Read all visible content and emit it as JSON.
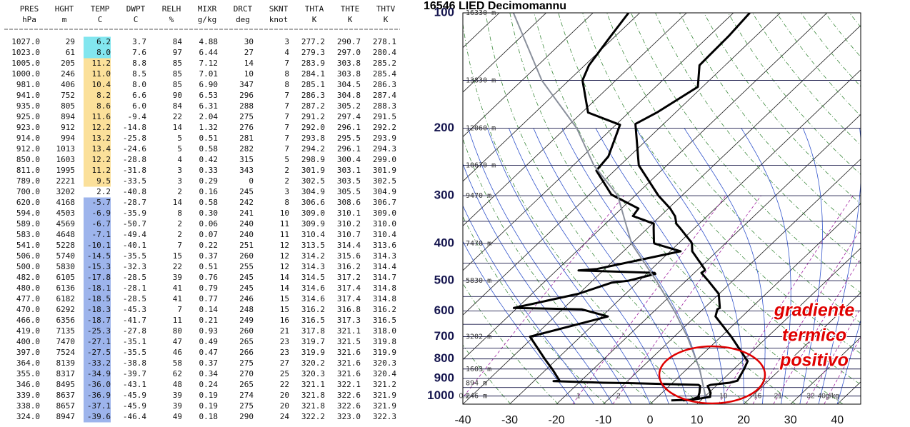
{
  "table": {
    "header": [
      "PRES",
      "HGHT",
      "TEMP",
      "DWPT",
      "RELH",
      "MIXR",
      "DRCT",
      "SKNT",
      "THTA",
      "THTE",
      "THTV"
    ],
    "units": [
      "hPa",
      "m",
      "C",
      "C",
      "%",
      "g/kg",
      "deg",
      "knot",
      "K",
      "K",
      "K"
    ],
    "rows": [
      [
        "1027.0",
        "29",
        "6.2",
        "3.7",
        "84",
        "4.88",
        "30",
        "3",
        "277.2",
        "290.7",
        "278.1"
      ],
      [
        "1023.0",
        "61",
        "8.0",
        "7.6",
        "97",
        "6.44",
        "27",
        "4",
        "279.3",
        "297.0",
        "280.4"
      ],
      [
        "1005.0",
        "205",
        "11.2",
        "8.8",
        "85",
        "7.12",
        "14",
        "7",
        "283.9",
        "303.8",
        "285.2"
      ],
      [
        "1000.0",
        "246",
        "11.0",
        "8.5",
        "85",
        "7.01",
        "10",
        "8",
        "284.1",
        "303.8",
        "285.4"
      ],
      [
        "981.0",
        "406",
        "10.4",
        "8.0",
        "85",
        "6.90",
        "347",
        "8",
        "285.1",
        "304.5",
        "286.3"
      ],
      [
        "941.0",
        "752",
        "8.2",
        "6.6",
        "90",
        "6.53",
        "296",
        "7",
        "286.3",
        "304.8",
        "287.4"
      ],
      [
        "935.0",
        "805",
        "8.6",
        "6.0",
        "84",
        "6.31",
        "288",
        "7",
        "287.2",
        "305.2",
        "288.3"
      ],
      [
        "925.0",
        "894",
        "11.6",
        "-9.4",
        "22",
        "2.04",
        "275",
        "7",
        "291.2",
        "297.4",
        "291.5"
      ],
      [
        "923.0",
        "912",
        "12.2",
        "-14.8",
        "14",
        "1.32",
        "276",
        "7",
        "292.0",
        "296.1",
        "292.2"
      ],
      [
        "914.0",
        "994",
        "13.2",
        "-25.8",
        "5",
        "0.51",
        "281",
        "7",
        "293.8",
        "295.5",
        "293.9"
      ],
      [
        "912.0",
        "1013",
        "13.4",
        "-24.6",
        "5",
        "0.58",
        "282",
        "7",
        "294.2",
        "296.1",
        "294.3"
      ],
      [
        "850.0",
        "1603",
        "12.2",
        "-28.8",
        "4",
        "0.42",
        "315",
        "5",
        "298.9",
        "300.4",
        "299.0"
      ],
      [
        "811.0",
        "1995",
        "11.2",
        "-31.8",
        "3",
        "0.33",
        "343",
        "2",
        "301.9",
        "303.1",
        "301.9"
      ],
      [
        "789.0",
        "2221",
        "9.5",
        "-33.5",
        "3",
        "0.29",
        "0",
        "2",
        "302.5",
        "303.5",
        "302.5"
      ],
      [
        "700.0",
        "3202",
        "2.2",
        "-40.8",
        "2",
        "0.16",
        "245",
        "3",
        "304.9",
        "305.5",
        "304.9"
      ],
      [
        "620.0",
        "4168",
        "-5.7",
        "-28.7",
        "14",
        "0.58",
        "242",
        "8",
        "306.6",
        "308.6",
        "306.7"
      ],
      [
        "594.0",
        "4503",
        "-6.9",
        "-35.9",
        "8",
        "0.30",
        "241",
        "10",
        "309.0",
        "310.1",
        "309.0"
      ],
      [
        "589.0",
        "4569",
        "-6.7",
        "-50.7",
        "2",
        "0.06",
        "240",
        "11",
        "309.9",
        "310.2",
        "310.0"
      ],
      [
        "583.0",
        "4648",
        "-7.1",
        "-49.4",
        "2",
        "0.07",
        "240",
        "11",
        "310.4",
        "310.7",
        "310.4"
      ],
      [
        "541.0",
        "5228",
        "-10.1",
        "-40.1",
        "7",
        "0.22",
        "251",
        "12",
        "313.5",
        "314.4",
        "313.6"
      ],
      [
        "506.0",
        "5740",
        "-14.5",
        "-35.5",
        "15",
        "0.37",
        "260",
        "12",
        "314.2",
        "315.6",
        "314.3"
      ],
      [
        "500.0",
        "5830",
        "-15.3",
        "-32.3",
        "22",
        "0.51",
        "255",
        "12",
        "314.3",
        "316.2",
        "314.4"
      ],
      [
        "482.0",
        "6105",
        "-17.8",
        "-28.5",
        "39",
        "0.76",
        "245",
        "14",
        "314.5",
        "317.2",
        "314.7"
      ],
      [
        "480.0",
        "6136",
        "-18.1",
        "-28.1",
        "41",
        "0.79",
        "245",
        "14",
        "314.6",
        "317.4",
        "314.8"
      ],
      [
        "477.0",
        "6182",
        "-18.5",
        "-28.5",
        "41",
        "0.77",
        "246",
        "15",
        "314.6",
        "317.4",
        "314.8"
      ],
      [
        "470.0",
        "6292",
        "-18.3",
        "-45.3",
        "7",
        "0.14",
        "248",
        "15",
        "316.2",
        "316.8",
        "316.2"
      ],
      [
        "466.0",
        "6356",
        "-18.7",
        "-41.7",
        "11",
        "0.21",
        "249",
        "16",
        "316.5",
        "317.3",
        "316.5"
      ],
      [
        "419.0",
        "7135",
        "-25.3",
        "-27.8",
        "80",
        "0.93",
        "260",
        "21",
        "317.8",
        "321.1",
        "318.0"
      ],
      [
        "400.0",
        "7470",
        "-27.1",
        "-35.1",
        "47",
        "0.49",
        "265",
        "23",
        "319.7",
        "321.5",
        "319.8"
      ],
      [
        "397.0",
        "7524",
        "-27.5",
        "-35.5",
        "46",
        "0.47",
        "266",
        "23",
        "319.9",
        "321.6",
        "319.9"
      ],
      [
        "364.0",
        "8139",
        "-33.2",
        "-38.8",
        "58",
        "0.37",
        "275",
        "27",
        "320.2",
        "321.6",
        "320.3"
      ],
      [
        "355.0",
        "8317",
        "-34.9",
        "-39.7",
        "62",
        "0.34",
        "270",
        "25",
        "320.3",
        "321.6",
        "320.4"
      ],
      [
        "346.0",
        "8495",
        "-36.0",
        "-43.1",
        "48",
        "0.24",
        "265",
        "22",
        "321.1",
        "322.1",
        "321.2"
      ],
      [
        "339.0",
        "8637",
        "-36.9",
        "-45.9",
        "39",
        "0.19",
        "274",
        "20",
        "321.8",
        "322.6",
        "321.9"
      ],
      [
        "338.0",
        "8657",
        "-37.1",
        "-45.9",
        "39",
        "0.19",
        "275",
        "20",
        "321.8",
        "322.6",
        "321.9"
      ],
      [
        "324.0",
        "8947",
        "-39.6",
        "-46.4",
        "49",
        "0.18",
        "290",
        "24",
        "322.2",
        "323.0",
        "322.3"
      ]
    ],
    "temp_colors": [
      "#82e6ef",
      "#82e6ef",
      "#fbe09a",
      "#fbe09a",
      "#fbe09a",
      "#fbe09a",
      "#fbe09a",
      "#fbe09a",
      "#fbe09a",
      "#fbe09a",
      "#fbe09a",
      "#fbe09a",
      "#fbe09a",
      "#fbe09a",
      null,
      "#9db4ec",
      "#9db4ec",
      "#9db4ec",
      "#9db4ec",
      "#9db4ec",
      "#9db4ec",
      "#9db4ec",
      "#9db4ec",
      "#9db4ec",
      "#9db4ec",
      "#9db4ec",
      "#9db4ec",
      "#9db4ec",
      "#9db4ec",
      "#9db4ec",
      "#9db4ec",
      "#9db4ec",
      "#9db4ec",
      "#9db4ec",
      "#9db4ec",
      "#9db4ec"
    ]
  },
  "chart_data": {
    "type": "skew-t",
    "title": "16546 LIED Decimomannu",
    "xlim": [
      -40,
      45
    ],
    "ylim": [
      1050,
      100
    ],
    "log_y": true,
    "xticks": [
      -40,
      -30,
      -20,
      -10,
      0,
      10,
      20,
      30,
      40
    ],
    "yticks": [
      100,
      200,
      300,
      400,
      500,
      600,
      700,
      800,
      900,
      1000
    ],
    "height_labels": [
      {
        "value": 100,
        "label": "16330 m"
      },
      {
        "value": 150,
        "label": "13830 m"
      },
      {
        "value": 200,
        "label": "12060 m"
      },
      {
        "value": 250,
        "label": "10670 m"
      },
      {
        "value": 300,
        "label": "9470 m"
      },
      {
        "value": 400,
        "label": "7470 m"
      },
      {
        "value": 500,
        "label": "5830 m"
      },
      {
        "value": 700,
        "label": "3202 m"
      },
      {
        "value": 850,
        "label": "1603 m"
      },
      {
        "value": 925,
        "label": "894 m"
      },
      {
        "value": 1000,
        "label": "246 m"
      }
    ],
    "mixing_ratio_lines": [
      0.1,
      1,
      2,
      10,
      16,
      21,
      32,
      {
        "value": 40,
        "label": "40g/kg"
      }
    ],
    "series": [
      {
        "color": "#000000",
        "width": 3,
        "pressure": [
          1027,
          1023,
          1005,
          1000,
          981,
          941,
          935,
          925,
          923,
          914,
          912,
          850,
          811,
          789,
          700,
          620,
          594,
          589,
          583,
          541,
          506,
          500,
          482,
          480,
          477,
          470,
          466,
          419,
          400,
          397,
          364,
          355,
          346,
          339,
          338,
          324,
          300,
          250,
          195,
          182,
          156,
          137,
          129,
          115,
          100
        ],
        "values": [
          6.2,
          8.0,
          11.2,
          11.0,
          10.4,
          8.2,
          8.6,
          11.6,
          12.2,
          13.2,
          13.4,
          12.2,
          11.2,
          9.5,
          2.2,
          -5.7,
          -6.9,
          -6.7,
          -7.1,
          -10.1,
          -14.5,
          -15.3,
          -17.8,
          -18.1,
          -18.5,
          -18.3,
          -18.7,
          -25.3,
          -27.1,
          -27.5,
          -33.2,
          -34.9,
          -36.0,
          -36.9,
          -37.1,
          -39.6,
          -45,
          -56,
          -66,
          -64,
          -61,
          -65.5,
          -65.6,
          -65.8,
          -66.5
        ]
      },
      {
        "color": "#000000",
        "width": 3,
        "pressure": [
          1027,
          1023,
          1005,
          1000,
          981,
          941,
          935,
          925,
          923,
          914,
          912,
          850,
          811,
          789,
          700,
          620,
          594,
          589,
          583,
          541,
          506,
          500,
          482,
          480,
          477,
          470,
          466,
          419,
          400,
          397,
          364,
          355,
          346,
          339,
          338,
          324,
          298,
          258,
          237,
          196,
          182,
          150,
          137,
          115,
          100
        ],
        "values": [
          3.7,
          7.6,
          8.8,
          8.5,
          8.0,
          6.6,
          6.0,
          -9.4,
          -14.8,
          -25.8,
          -24.6,
          -28.8,
          -31.8,
          -33.5,
          -40.8,
          -28.7,
          -35.9,
          -50.7,
          -49.4,
          -40.1,
          -35.5,
          -32.3,
          -28.5,
          -28.1,
          -28.5,
          -45.3,
          -41.7,
          -27.8,
          -35.1,
          -35.5,
          -38.8,
          -39.7,
          -43.1,
          -45.9,
          -45.9,
          -46.4,
          -55.3,
          -63.9,
          -64.5,
          -69.1,
          -78.7,
          -87.1,
          -89.1,
          -91,
          -92.4
        ]
      },
      {
        "color": "#8a909c",
        "width": 2,
        "pressure": [
          1000,
          925,
          850,
          700,
          600,
          500,
          400,
          300,
          250,
          200,
          150,
          100
        ],
        "values": [
          10,
          6.5,
          2.7,
          -7.2,
          -15.7,
          -26.4,
          -40,
          -53.7,
          -65.6,
          -77.6,
          -95.8,
          -117
        ]
      }
    ],
    "annotations": [
      "gradiente",
      "termico",
      "positivo"
    ],
    "annotation_color": "#e00000"
  }
}
